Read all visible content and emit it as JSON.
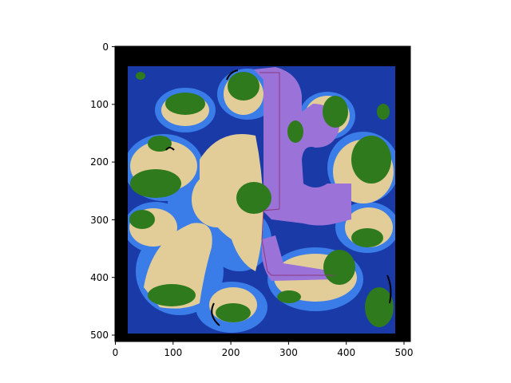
{
  "map": {
    "x_ticks": [
      "0",
      "100",
      "200",
      "300",
      "400",
      "500"
    ],
    "y_ticks": [
      "0",
      "100",
      "200",
      "300",
      "400",
      "500"
    ],
    "extent": {
      "x": [
        0,
        512
      ],
      "y": [
        0,
        512
      ]
    },
    "colors": {
      "border": "#000000",
      "deep_water": "#1a3aa8",
      "shallow_water": "#3a7de8",
      "sand": "#e2cd98",
      "forest": "#2e7a1c",
      "highlight_region": "#9a72d8",
      "path_line": "#8a3a80"
    }
  }
}
